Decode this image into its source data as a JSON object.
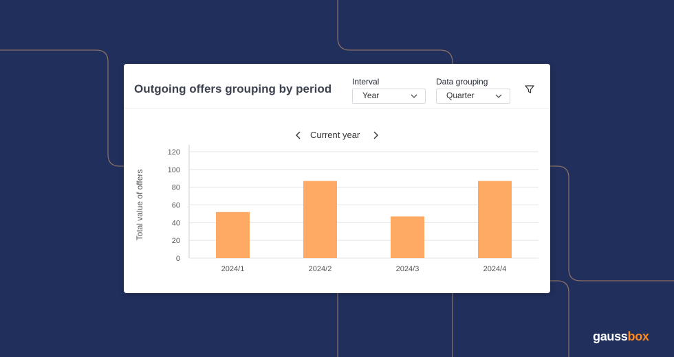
{
  "brand": {
    "part1": "gauss",
    "part2": "box",
    "accent_color": "#ff8a1d"
  },
  "card": {
    "title": "Outgoing offers grouping by period",
    "interval": {
      "label": "Interval",
      "value": "Year"
    },
    "grouping": {
      "label": "Data grouping",
      "value": "Quarter"
    },
    "filter_icon": "filter-icon",
    "period": {
      "label": "Current year",
      "prev_icon": "chevron-left-icon",
      "next_icon": "chevron-right-icon"
    }
  },
  "colors": {
    "bar": "#ffaa64",
    "background": "#212f5c",
    "grid": "#e3e3e3"
  },
  "chart_data": {
    "type": "bar",
    "title": "",
    "xlabel": "",
    "ylabel": "Total value of offers",
    "categories": [
      "2024/1",
      "2024/2",
      "2024/3",
      "2024/4"
    ],
    "values": [
      52,
      87,
      47,
      87
    ],
    "ylim": [
      0,
      120
    ],
    "yticks": [
      0,
      20,
      40,
      60,
      80,
      100,
      120
    ],
    "grid": true,
    "legend": "none"
  }
}
